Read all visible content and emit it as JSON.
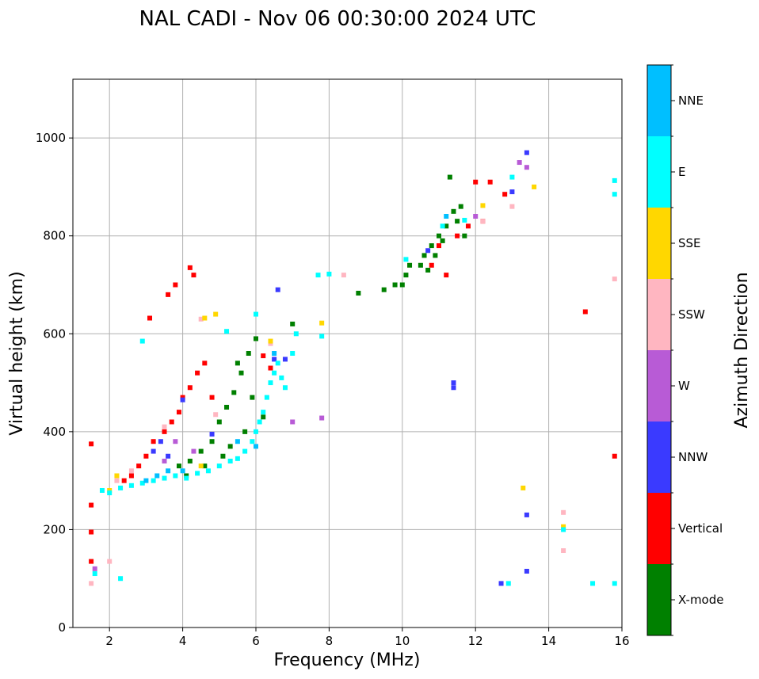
{
  "chart_data": {
    "type": "scatter",
    "title": "NAL CADI - Nov 06 00:30:00 2024 UTC",
    "xlabel": "Frequency (MHz)",
    "ylabel": "Virtual height (km)",
    "xlim": [
      1,
      16
    ],
    "ylim": [
      0,
      1120
    ],
    "xticks": [
      2,
      4,
      6,
      8,
      10,
      12,
      14,
      16
    ],
    "yticks": [
      0,
      200,
      400,
      600,
      800,
      1000
    ],
    "grid": true,
    "colorbar": {
      "label": "Azimuth Direction",
      "categories": [
        {
          "name": "X-mode",
          "color": "#008000"
        },
        {
          "name": "Vertical",
          "color": "#ff0000"
        },
        {
          "name": "NNW",
          "color": "#3a3aff"
        },
        {
          "name": "W",
          "color": "#b85bd6"
        },
        {
          "name": "SSW",
          "color": "#ffb6c1"
        },
        {
          "name": "SSE",
          "color": "#ffd700"
        },
        {
          "name": "E",
          "color": "#00ffff"
        },
        {
          "name": "NNE",
          "color": "#00bfff"
        }
      ]
    },
    "series": [
      {
        "name": "X-mode",
        "points": [
          [
            4.5,
            360
          ],
          [
            4.8,
            380
          ],
          [
            5.0,
            420
          ],
          [
            5.2,
            450
          ],
          [
            5.4,
            480
          ],
          [
            5.5,
            540
          ],
          [
            5.6,
            520
          ],
          [
            5.8,
            560
          ],
          [
            6.0,
            590
          ],
          [
            6.2,
            430
          ],
          [
            7.0,
            620
          ],
          [
            4.2,
            340
          ],
          [
            4.6,
            330
          ],
          [
            5.1,
            350
          ],
          [
            5.3,
            370
          ],
          [
            5.7,
            400
          ],
          [
            10.0,
            700
          ],
          [
            10.1,
            720
          ],
          [
            10.2,
            740
          ],
          [
            10.5,
            740
          ],
          [
            10.6,
            760
          ],
          [
            10.7,
            730
          ],
          [
            10.8,
            780
          ],
          [
            10.9,
            760
          ],
          [
            11.0,
            800
          ],
          [
            11.1,
            790
          ],
          [
            11.2,
            820
          ],
          [
            11.4,
            850
          ],
          [
            11.5,
            830
          ],
          [
            11.6,
            860
          ],
          [
            11.7,
            800
          ],
          [
            11.3,
            920
          ],
          [
            9.5,
            690
          ],
          [
            9.8,
            700
          ],
          [
            8.8,
            683
          ],
          [
            3.9,
            330
          ],
          [
            4.1,
            310
          ],
          [
            5.9,
            470
          ]
        ]
      },
      {
        "name": "Vertical",
        "points": [
          [
            1.5,
            375
          ],
          [
            1.5,
            250
          ],
          [
            1.5,
            195
          ],
          [
            1.5,
            135
          ],
          [
            2.8,
            330
          ],
          [
            3.0,
            350
          ],
          [
            3.2,
            380
          ],
          [
            3.5,
            400
          ],
          [
            3.7,
            420
          ],
          [
            3.9,
            440
          ],
          [
            4.0,
            470
          ],
          [
            4.2,
            490
          ],
          [
            4.4,
            520
          ],
          [
            4.6,
            540
          ],
          [
            3.8,
            700
          ],
          [
            3.6,
            680
          ],
          [
            4.2,
            735
          ],
          [
            4.3,
            720
          ],
          [
            3.1,
            632
          ],
          [
            6.2,
            555
          ],
          [
            6.4,
            530
          ],
          [
            10.8,
            740
          ],
          [
            11.0,
            780
          ],
          [
            11.2,
            720
          ],
          [
            11.5,
            800
          ],
          [
            11.8,
            820
          ],
          [
            12.0,
            910
          ],
          [
            12.4,
            910
          ],
          [
            12.8,
            885
          ],
          [
            12.2,
            830
          ],
          [
            15.0,
            645
          ],
          [
            15.8,
            350
          ],
          [
            2.4,
            300
          ],
          [
            2.6,
            310
          ],
          [
            4.8,
            470
          ]
        ]
      },
      {
        "name": "NNW",
        "points": [
          [
            3.2,
            360
          ],
          [
            3.4,
            380
          ],
          [
            4.0,
            465
          ],
          [
            4.8,
            395
          ],
          [
            6.6,
            690
          ],
          [
            6.5,
            548
          ],
          [
            6.8,
            548
          ],
          [
            11.4,
            500
          ],
          [
            11.4,
            490
          ],
          [
            13.0,
            890
          ],
          [
            13.4,
            970
          ],
          [
            13.4,
            230
          ],
          [
            13.4,
            115
          ],
          [
            12.7,
            90
          ],
          [
            3.6,
            350
          ],
          [
            10.7,
            770
          ]
        ]
      },
      {
        "name": "W",
        "points": [
          [
            3.5,
            340
          ],
          [
            3.8,
            380
          ],
          [
            4.3,
            360
          ],
          [
            7.8,
            428
          ],
          [
            7.0,
            420
          ],
          [
            13.2,
            950
          ],
          [
            13.4,
            940
          ],
          [
            12.0,
            840
          ],
          [
            1.6,
            120
          ]
        ]
      },
      {
        "name": "SSW",
        "points": [
          [
            1.5,
            90
          ],
          [
            2.0,
            135
          ],
          [
            2.2,
            300
          ],
          [
            2.6,
            320
          ],
          [
            3.5,
            410
          ],
          [
            4.5,
            630
          ],
          [
            6.4,
            580
          ],
          [
            8.4,
            720
          ],
          [
            13.0,
            860
          ],
          [
            14.4,
            235
          ],
          [
            14.4,
            157
          ],
          [
            12.2,
            830
          ],
          [
            15.8,
            712
          ],
          [
            4.9,
            435
          ]
        ]
      },
      {
        "name": "SSE",
        "points": [
          [
            2.0,
            280
          ],
          [
            2.2,
            310
          ],
          [
            4.5,
            330
          ],
          [
            4.6,
            632
          ],
          [
            4.9,
            640
          ],
          [
            6.4,
            585
          ],
          [
            7.8,
            622
          ],
          [
            12.2,
            862
          ],
          [
            13.3,
            285
          ],
          [
            13.6,
            900
          ],
          [
            14.4,
            206
          ]
        ]
      },
      {
        "name": "E",
        "points": [
          [
            1.8,
            280
          ],
          [
            2.0,
            275
          ],
          [
            2.3,
            285
          ],
          [
            2.6,
            290
          ],
          [
            2.9,
            295
          ],
          [
            3.2,
            300
          ],
          [
            3.5,
            305
          ],
          [
            3.8,
            310
          ],
          [
            4.1,
            305
          ],
          [
            4.4,
            315
          ],
          [
            4.7,
            320
          ],
          [
            5.0,
            330
          ],
          [
            5.3,
            340
          ],
          [
            5.5,
            345
          ],
          [
            5.7,
            360
          ],
          [
            5.9,
            380
          ],
          [
            6.0,
            400
          ],
          [
            6.1,
            420
          ],
          [
            6.2,
            440
          ],
          [
            6.3,
            470
          ],
          [
            6.4,
            500
          ],
          [
            6.5,
            520
          ],
          [
            6.6,
            540
          ],
          [
            6.7,
            510
          ],
          [
            6.8,
            490
          ],
          [
            7.0,
            560
          ],
          [
            7.1,
            600
          ],
          [
            6.0,
            640
          ],
          [
            2.9,
            585
          ],
          [
            5.2,
            605
          ],
          [
            7.7,
            720
          ],
          [
            7.8,
            595
          ],
          [
            8.0,
            722
          ],
          [
            10.1,
            752
          ],
          [
            11.1,
            820
          ],
          [
            11.7,
            832
          ],
          [
            13.0,
            920
          ],
          [
            12.9,
            90
          ],
          [
            14.4,
            200
          ],
          [
            15.2,
            90
          ],
          [
            15.8,
            913
          ],
          [
            15.8,
            885
          ],
          [
            15.8,
            90
          ],
          [
            2.3,
            100
          ],
          [
            1.6,
            110
          ]
        ]
      },
      {
        "name": "NNE",
        "points": [
          [
            3.0,
            300
          ],
          [
            3.3,
            310
          ],
          [
            3.6,
            320
          ],
          [
            4.0,
            320
          ],
          [
            5.5,
            380
          ],
          [
            6.0,
            370
          ],
          [
            6.5,
            560
          ],
          [
            11.2,
            840
          ]
        ]
      }
    ]
  }
}
